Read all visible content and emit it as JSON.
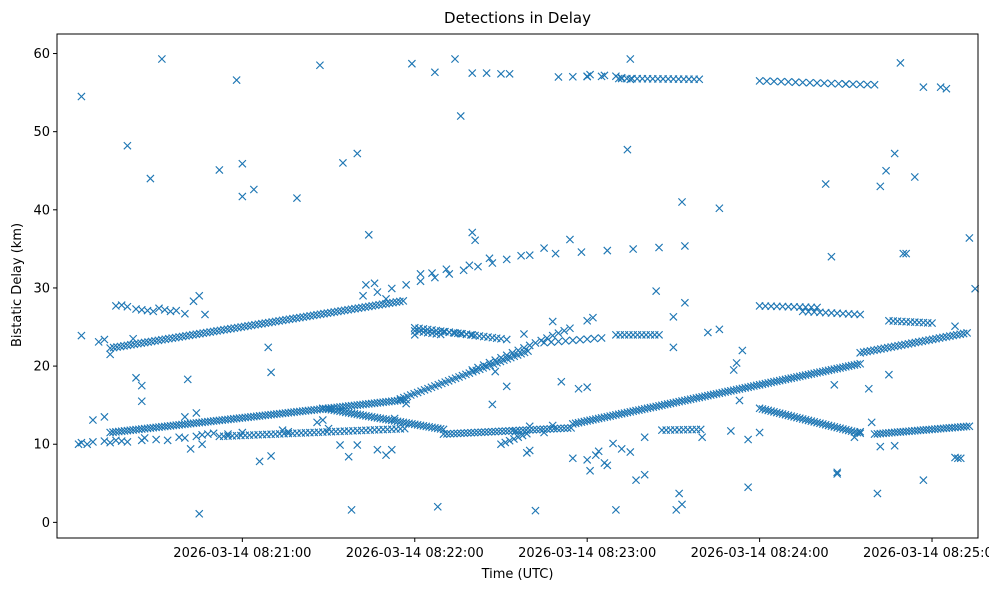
{
  "chart_data": {
    "type": "scatter",
    "title": "Detections in Delay",
    "xlabel": "Time (UTC)",
    "ylabel": "Bistatic Delay (km)",
    "x_unit": "seconds after 2026-03-14 08:20:00 UTC",
    "xlim": [
      -4.5,
      316
    ],
    "ylim": [
      -2,
      62.5
    ],
    "xticks": [
      {
        "value": 60,
        "label": "2026-03-14 08:21:00"
      },
      {
        "value": 120,
        "label": "2026-03-14 08:22:00"
      },
      {
        "value": 180,
        "label": "2026-03-14 08:23:00"
      },
      {
        "value": 240,
        "label": "2026-03-14 08:24:00"
      },
      {
        "value": 300,
        "label": "2026-03-14 08:25:00"
      }
    ],
    "yticks": [
      0,
      10,
      20,
      30,
      40,
      50,
      60
    ],
    "marker": "x",
    "color": "#1f77b4",
    "tracks": [
      {
        "name": "track-1",
        "x0": 14,
        "x1": 117,
        "y0": 22.3,
        "y1": 28.4,
        "step": 1.2
      },
      {
        "name": "track-2",
        "x0": 14,
        "x1": 117,
        "y0": 11.5,
        "y1": 15.7,
        "step": 1.0
      },
      {
        "name": "track-3",
        "x0": 115,
        "x1": 160,
        "y0": 15.8,
        "y1": 22.0,
        "step": 1.2
      },
      {
        "name": "track-4",
        "x0": 160,
        "x1": 220,
        "y0": 34.2,
        "y1": 35.5,
        "step": 9
      },
      {
        "name": "track-5",
        "x0": 52,
        "x1": 117,
        "y0": 11.0,
        "y1": 12.0,
        "step": 1.5
      },
      {
        "name": "track-6",
        "x0": 88,
        "x1": 130,
        "y0": 14.6,
        "y1": 11.9,
        "step": 1.0
      },
      {
        "name": "track-7",
        "x0": 130,
        "x1": 175,
        "y0": 11.3,
        "y1": 12.1,
        "step": 1.2
      },
      {
        "name": "track-8",
        "x0": 175,
        "x1": 275,
        "y0": 12.6,
        "y1": 20.3,
        "step": 1.0
      },
      {
        "name": "track-9",
        "x0": 240,
        "x1": 275,
        "y0": 14.6,
        "y1": 11.4,
        "step": 1.0
      },
      {
        "name": "track-10",
        "x0": 275,
        "x1": 313,
        "y0": 21.7,
        "y1": 24.3,
        "step": 1.2
      },
      {
        "name": "track-11",
        "x0": 280,
        "x1": 313,
        "y0": 11.3,
        "y1": 12.3,
        "step": 1.0
      },
      {
        "name": "track-12",
        "x0": 102,
        "x1": 160,
        "y0": 29.0,
        "y1": 34.4,
        "step": 5
      },
      {
        "name": "track-13",
        "x0": 120,
        "x1": 150,
        "y0": 24.9,
        "y1": 23.5,
        "step": 1.5
      },
      {
        "name": "track-14",
        "x0": 120,
        "x1": 130,
        "y0": 24.5,
        "y1": 24.0,
        "step": 1.5
      },
      {
        "name": "track-15",
        "x0": 130,
        "x1": 140,
        "y0": 24.4,
        "y1": 24.0,
        "step": 2.0
      },
      {
        "name": "track-16",
        "x0": 140,
        "x1": 175,
        "y0": 19.5,
        "y1": 25.0,
        "step": 2.0
      },
      {
        "name": "track-17",
        "x0": 170,
        "x1": 190,
        "y0": 57.0,
        "y1": 57.1,
        "step": 5
      },
      {
        "name": "track-18",
        "x0": 192,
        "x1": 220,
        "y0": 56.8,
        "y1": 56.7,
        "step": 1.8
      },
      {
        "name": "track-19",
        "x0": 240,
        "x1": 270,
        "y0": 56.5,
        "y1": 56.1,
        "step": 2.5
      },
      {
        "name": "track-20",
        "x0": 270,
        "x1": 280,
        "y0": 56.1,
        "y1": 56.0,
        "step": 2.5
      },
      {
        "name": "track-21",
        "x0": 206,
        "x1": 220,
        "y0": 11.8,
        "y1": 11.9,
        "step": 1.5
      },
      {
        "name": "track-22",
        "x0": 240,
        "x1": 260,
        "y0": 27.7,
        "y1": 27.5,
        "step": 2.0
      },
      {
        "name": "track-23",
        "x0": 255,
        "x1": 275,
        "y0": 27.0,
        "y1": 26.6,
        "step": 2.0
      },
      {
        "name": "track-24",
        "x0": 285,
        "x1": 300,
        "y0": 25.8,
        "y1": 25.5,
        "step": 1.5
      },
      {
        "name": "track-25",
        "x0": 190,
        "x1": 205,
        "y0": 24.0,
        "y1": 24.0,
        "step": 1.5
      },
      {
        "name": "track-26",
        "x0": 165,
        "x1": 185,
        "y0": 23.0,
        "y1": 23.6,
        "step": 2.5
      },
      {
        "name": "track-27",
        "x0": 150,
        "x1": 160,
        "y0": 10.0,
        "y1": 11.5,
        "step": 1.5
      }
    ],
    "points": [
      [
        3,
        10
      ],
      [
        4,
        10.2
      ],
      [
        6,
        10.0
      ],
      [
        8,
        10.3
      ],
      [
        12,
        10.4
      ],
      [
        14,
        10.2
      ],
      [
        16,
        10.5
      ],
      [
        18,
        10.4
      ],
      [
        20,
        10.3
      ],
      [
        25,
        10.5
      ],
      [
        26,
        10.8
      ],
      [
        30,
        10.6
      ],
      [
        34,
        10.5
      ],
      [
        38,
        10.9
      ],
      [
        40,
        10.8
      ],
      [
        44,
        11.0
      ],
      [
        46,
        11.2
      ],
      [
        50,
        11.4
      ],
      [
        4,
        54.5
      ],
      [
        4,
        23.9
      ],
      [
        8,
        13.1
      ],
      [
        12,
        13.5
      ],
      [
        16,
        27.7
      ],
      [
        18,
        27.8
      ],
      [
        20,
        27.6
      ],
      [
        23,
        27.3
      ],
      [
        25,
        27.2
      ],
      [
        27,
        27.1
      ],
      [
        29,
        27.0
      ],
      [
        31,
        27.4
      ],
      [
        33,
        27.2
      ],
      [
        35,
        27.0
      ],
      [
        37,
        27.1
      ],
      [
        20,
        48.2
      ],
      [
        23,
        18.5
      ],
      [
        25,
        17.5
      ],
      [
        25,
        15.5
      ],
      [
        22,
        23.5
      ],
      [
        28,
        44.0
      ],
      [
        32,
        59.3
      ],
      [
        45,
        29.0
      ],
      [
        47,
        26.6
      ],
      [
        43,
        28.3
      ],
      [
        40,
        26.7
      ],
      [
        41,
        18.3
      ],
      [
        42,
        9.4
      ],
      [
        45,
        1.1
      ],
      [
        44,
        14.0
      ],
      [
        40,
        13.5
      ],
      [
        52,
        45.1
      ],
      [
        58,
        56.6
      ],
      [
        60,
        45.9
      ],
      [
        60,
        41.7
      ],
      [
        64,
        42.6
      ],
      [
        66,
        7.8
      ],
      [
        70,
        8.5
      ],
      [
        70,
        19.2
      ],
      [
        69,
        22.4
      ],
      [
        79,
        41.5
      ],
      [
        87,
        58.5
      ],
      [
        95,
        46.0
      ],
      [
        94,
        9.9
      ],
      [
        97,
        8.4
      ],
      [
        98,
        1.6
      ],
      [
        100,
        47.2
      ],
      [
        104,
        36.8
      ],
      [
        103,
        30.4
      ],
      [
        106,
        30.6
      ],
      [
        110,
        28.6
      ],
      [
        107,
        9.3
      ],
      [
        110,
        8.6
      ],
      [
        112,
        9.3
      ],
      [
        113,
        13.3
      ],
      [
        117,
        15.2
      ],
      [
        119,
        58.7
      ],
      [
        120,
        24.0
      ],
      [
        122,
        31.8
      ],
      [
        126,
        31.9
      ],
      [
        127,
        57.6
      ],
      [
        128,
        2.0
      ],
      [
        131,
        32.4
      ],
      [
        134,
        59.3
      ],
      [
        136,
        52.0
      ],
      [
        140,
        57.5
      ],
      [
        145,
        57.5
      ],
      [
        150,
        57.4
      ],
      [
        153,
        57.4
      ],
      [
        139,
        32.9
      ],
      [
        140,
        37.1
      ],
      [
        141,
        36.1
      ],
      [
        146,
        33.8
      ],
      [
        148,
        19.3
      ],
      [
        147,
        15.1
      ],
      [
        152,
        17.4
      ],
      [
        152,
        23.4
      ],
      [
        158,
        24.1
      ],
      [
        159,
        8.9
      ],
      [
        160,
        9.2
      ],
      [
        162,
        1.5
      ],
      [
        165,
        35.1
      ],
      [
        168,
        25.7
      ],
      [
        171,
        18.0
      ],
      [
        174,
        36.2
      ],
      [
        180,
        8.0
      ],
      [
        181,
        6.6
      ],
      [
        183,
        8.6
      ],
      [
        186,
        7.6
      ],
      [
        189,
        10.1
      ],
      [
        190,
        1.6
      ],
      [
        192,
        9.4
      ],
      [
        177,
        17.1
      ],
      [
        180,
        25.8
      ],
      [
        182,
        26.2
      ],
      [
        194,
        47.7
      ],
      [
        195,
        59.3
      ],
      [
        197,
        5.4
      ],
      [
        200,
        6.1
      ],
      [
        204,
        29.6
      ],
      [
        211,
        1.6
      ],
      [
        213,
        2.3
      ],
      [
        212,
        3.7
      ],
      [
        210,
        22.4
      ],
      [
        210,
        26.3
      ],
      [
        214,
        28.1
      ],
      [
        213,
        41.0
      ],
      [
        220,
        10.9
      ],
      [
        222,
        24.3
      ],
      [
        226,
        24.7
      ],
      [
        226,
        40.2
      ],
      [
        231,
        19.5
      ],
      [
        232,
        20.4
      ],
      [
        234,
        22.0
      ],
      [
        236,
        10.6
      ],
      [
        236,
        4.5
      ],
      [
        230,
        11.7
      ],
      [
        233,
        15.6
      ],
      [
        240,
        11.5
      ],
      [
        263,
        43.3
      ],
      [
        265,
        34.0
      ],
      [
        266,
        17.6
      ],
      [
        267,
        6.2
      ],
      [
        267,
        6.4
      ],
      [
        275,
        11.6
      ],
      [
        273,
        10.9
      ],
      [
        279,
        12.8
      ],
      [
        281,
        3.7
      ],
      [
        282,
        9.7
      ],
      [
        278,
        17.1
      ],
      [
        285,
        18.9
      ],
      [
        287,
        9.8
      ],
      [
        282,
        43.0
      ],
      [
        284,
        45.0
      ],
      [
        287,
        47.2
      ],
      [
        289,
        58.8
      ],
      [
        290,
        34.4
      ],
      [
        291,
        34.4
      ],
      [
        294,
        44.2
      ],
      [
        297,
        55.7
      ],
      [
        303,
        55.7
      ],
      [
        305,
        55.5
      ],
      [
        297,
        5.4
      ],
      [
        308,
        25.1
      ],
      [
        313,
        36.4
      ],
      [
        315,
        29.9
      ],
      [
        309,
        8.2
      ],
      [
        310,
        8.2
      ],
      [
        308,
        8.3
      ],
      [
        180,
        17.3
      ],
      [
        184,
        9.1
      ],
      [
        187,
        7.3
      ],
      [
        195,
        9.0
      ],
      [
        200,
        10.9
      ],
      [
        175,
        8.2
      ],
      [
        168,
        12.4
      ],
      [
        165,
        11.5
      ],
      [
        160,
        12.3
      ],
      [
        155,
        11.6
      ],
      [
        10,
        23.1
      ],
      [
        14,
        21.5
      ],
      [
        12,
        23.4
      ],
      [
        48,
        11.3
      ],
      [
        46,
        10.0
      ],
      [
        55,
        11.3
      ],
      [
        60,
        11.5
      ],
      [
        74,
        11.8
      ],
      [
        76,
        11.6
      ],
      [
        90,
        12.0
      ],
      [
        100,
        9.9
      ],
      [
        88,
        13.1
      ],
      [
        86,
        12.8
      ],
      [
        180,
        57.1
      ],
      [
        186,
        57.2
      ],
      [
        181,
        57.3
      ],
      [
        191,
        56.8
      ],
      [
        192,
        56.9
      ],
      [
        195,
        56.7
      ]
    ]
  }
}
